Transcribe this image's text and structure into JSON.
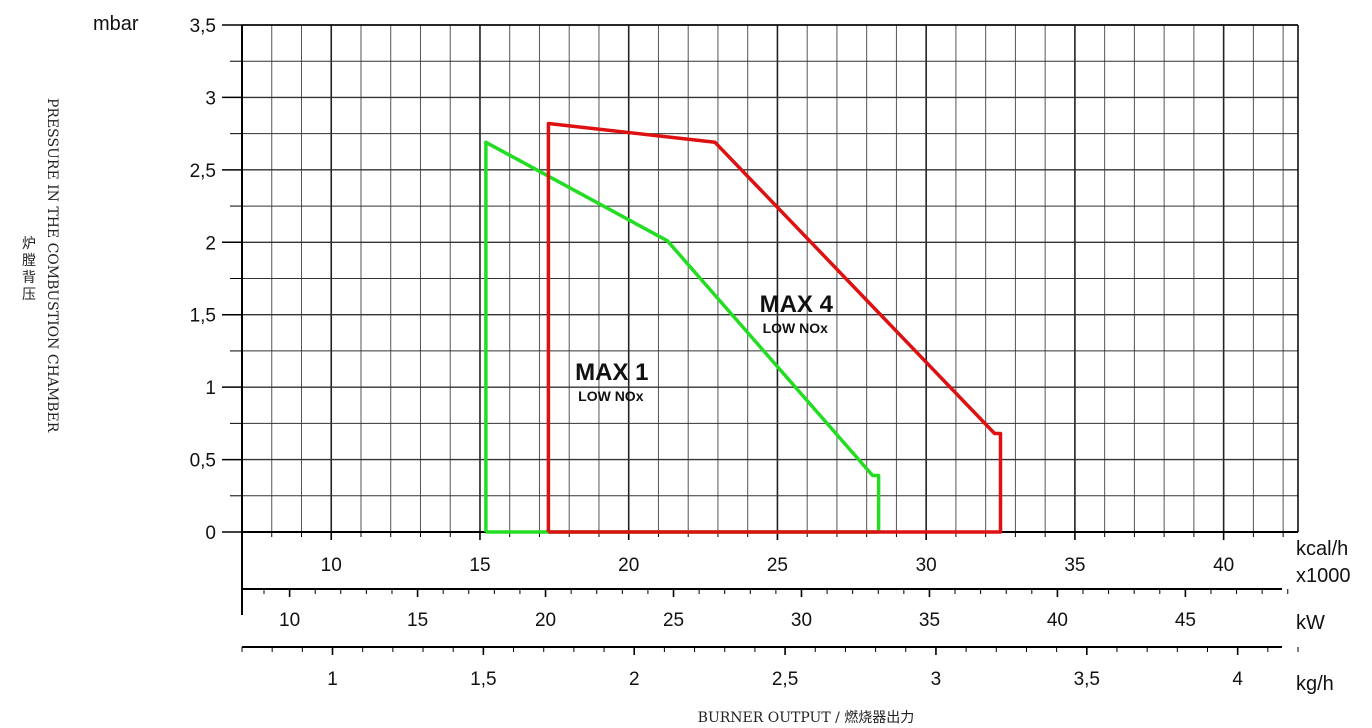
{
  "chart_data": {
    "type": "line",
    "title": "",
    "xlabel": "BURNER OUTPUT / 燃烧器出力",
    "ylabel": "PRESSURE IN THE COMBUSTION CHAMBER",
    "ylabel_cn": "炉膛背压",
    "y_unit": "mbar",
    "ylim": [
      0,
      3.5
    ],
    "y_ticks": [
      "0",
      "0,5",
      "1",
      "1,5",
      "2",
      "2,5",
      "3",
      "3,5"
    ],
    "x_axes": [
      {
        "unit": "kcal/h",
        "unit_line2": "x1000",
        "range": [
          7,
          42.5
        ],
        "ticks": [
          10,
          15,
          20,
          25,
          30,
          35,
          40
        ],
        "tick_labels": [
          "10",
          "15",
          "20",
          "25",
          "30",
          "35",
          "40"
        ]
      },
      {
        "unit": "kW",
        "range": [
          8.14,
          49.4
        ],
        "ticks": [
          10,
          15,
          20,
          25,
          30,
          35,
          40,
          45
        ],
        "tick_labels": [
          "10",
          "15",
          "20",
          "25",
          "30",
          "35",
          "40",
          "45"
        ]
      },
      {
        "unit": "kg/h",
        "range": [
          0.7,
          4.2
        ],
        "ticks": [
          1,
          1.5,
          2,
          2.5,
          3,
          3.5,
          4
        ],
        "tick_labels": [
          "1",
          "1,5",
          "2",
          "2,5",
          "3",
          "3,5",
          "4"
        ]
      }
    ],
    "grid": true,
    "series": [
      {
        "name": "MAX 1",
        "subtitle": "LOW NOx",
        "color": "#22dd22",
        "label_at": [
          18.2,
          1.05
        ],
        "points": [
          [
            15.2,
            0
          ],
          [
            15.2,
            2.69
          ],
          [
            21.3,
            2.01
          ],
          [
            28.2,
            0.39
          ],
          [
            28.4,
            0.39
          ],
          [
            28.4,
            0
          ],
          [
            15.2,
            0
          ]
        ]
      },
      {
        "name": "MAX 4",
        "subtitle": "LOW NOx",
        "color": "#dd1111",
        "label_at": [
          24.4,
          1.52
        ],
        "points": [
          [
            17.3,
            0
          ],
          [
            17.3,
            2.82
          ],
          [
            22.9,
            2.69
          ],
          [
            32.3,
            0.68
          ],
          [
            32.5,
            0.68
          ],
          [
            32.5,
            0
          ],
          [
            17.3,
            0
          ]
        ]
      }
    ]
  }
}
